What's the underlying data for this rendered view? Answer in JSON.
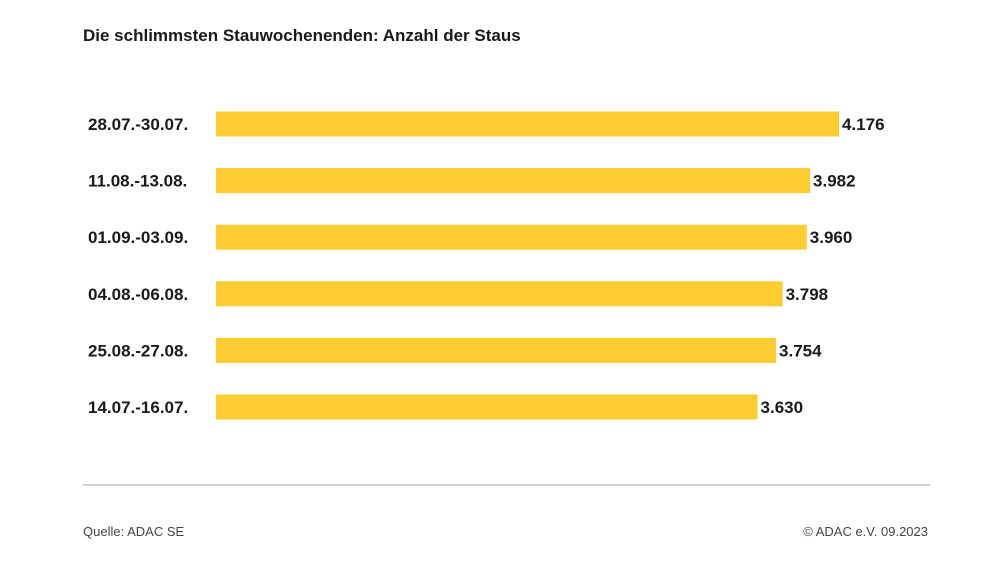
{
  "title": "Die schlimmsten Stauwochenenden: Anzahl der Staus",
  "source": "Quelle: ADAC SE",
  "copyright": "© ADAC e.V. 09.2023",
  "colors": {
    "bar": "#fccc30",
    "text": "#1a1a1a",
    "divider": "#d0d0d0"
  },
  "chart_data": {
    "type": "bar",
    "orientation": "horizontal",
    "title": "Die schlimmsten Stauwochenenden: Anzahl der Staus",
    "categories": [
      "28.07.-30.07.",
      "11.08.-13.08.",
      "01.09.-03.09.",
      "04.08.-06.08.",
      "25.08.-27.08.",
      "14.07.-16.07."
    ],
    "values": [
      4176,
      3982,
      3960,
      3798,
      3754,
      3630
    ],
    "value_labels": [
      "4.176",
      "3.982",
      "3.960",
      "3.798",
      "3.754",
      "3.630"
    ],
    "xlim": [
      0,
      4176
    ],
    "grid": false,
    "legend": "none"
  }
}
